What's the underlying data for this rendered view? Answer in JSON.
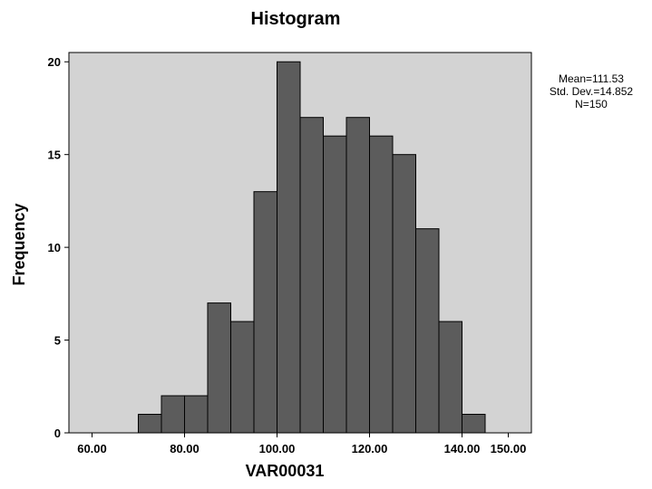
{
  "chart_data": {
    "type": "bar",
    "title": "Histogram",
    "xlabel": "VAR00031",
    "ylabel": "Frequency",
    "xlim": [
      55,
      155
    ],
    "ylim": [
      0,
      20.5
    ],
    "bin_width": 5,
    "bins": [
      {
        "start": 70,
        "end": 75,
        "count": 1
      },
      {
        "start": 75,
        "end": 80,
        "count": 2
      },
      {
        "start": 80,
        "end": 85,
        "count": 2
      },
      {
        "start": 85,
        "end": 90,
        "count": 7
      },
      {
        "start": 90,
        "end": 95,
        "count": 6
      },
      {
        "start": 95,
        "end": 100,
        "count": 13
      },
      {
        "start": 100,
        "end": 105,
        "count": 20
      },
      {
        "start": 105,
        "end": 110,
        "count": 17
      },
      {
        "start": 110,
        "end": 115,
        "count": 16
      },
      {
        "start": 115,
        "end": 120,
        "count": 17
      },
      {
        "start": 120,
        "end": 125,
        "count": 16
      },
      {
        "start": 125,
        "end": 130,
        "count": 15
      },
      {
        "start": 130,
        "end": 135,
        "count": 11
      },
      {
        "start": 135,
        "end": 140,
        "count": 6
      },
      {
        "start": 140,
        "end": 145,
        "count": 1
      }
    ],
    "x_ticks": [
      {
        "value": 60,
        "label": "60.00"
      },
      {
        "value": 80,
        "label": "80.00"
      },
      {
        "value": 100,
        "label": "100.00"
      },
      {
        "value": 120,
        "label": "120.00"
      },
      {
        "value": 140,
        "label": "140.00"
      },
      {
        "value": 150,
        "label": "150.00"
      }
    ],
    "y_ticks": [
      {
        "value": 0,
        "label": "0"
      },
      {
        "value": 5,
        "label": "5"
      },
      {
        "value": 10,
        "label": "10"
      },
      {
        "value": 15,
        "label": "15"
      },
      {
        "value": 20,
        "label": "20"
      }
    ],
    "stats": {
      "mean": "Mean=111.53",
      "std_dev": "Std. Dev.=14.852",
      "n": "N=150"
    },
    "grid": false,
    "colors": {
      "plot_background": "#d3d3d3",
      "bar_fill": "#5c5c5c",
      "bar_stroke": "#000000"
    }
  }
}
